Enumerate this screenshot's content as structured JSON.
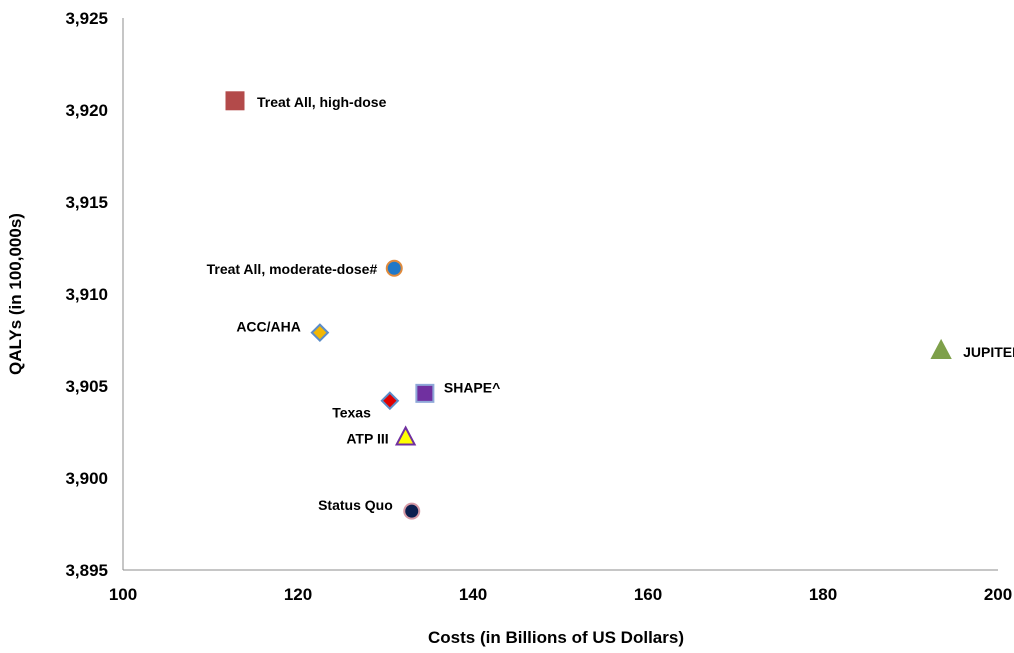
{
  "chart_data": {
    "type": "scatter",
    "xlabel": "Costs (in Billions of US Dollars)",
    "ylabel": "QALYs (in 100,000s)",
    "xlim": [
      100,
      200
    ],
    "ylim": [
      3895,
      3925
    ],
    "x_ticks": [
      "100",
      "120",
      "140",
      "160",
      "180",
      "200"
    ],
    "y_ticks": [
      "3,895",
      "3,900",
      "3,905",
      "3,910",
      "3,915",
      "3,920",
      "3,925"
    ],
    "grid": false,
    "points": [
      {
        "label": "Treat All, high-dose",
        "x": 112.8,
        "y": 3920.5,
        "marker": "square",
        "fill": "#b34a4a",
        "stroke": "#b34a4a",
        "label_pos": "right"
      },
      {
        "label": "Treat All, moderate-dose#",
        "x": 131.0,
        "y": 3911.4,
        "marker": "circle",
        "fill": "#1f78c8",
        "stroke": "#e08a3c",
        "label_pos": "left"
      },
      {
        "label": "ACC/AHA",
        "x": 122.5,
        "y": 3907.9,
        "marker": "diamond",
        "fill": "#f2b705",
        "stroke": "#5b8cc8",
        "label_pos": "upper-left"
      },
      {
        "label": "JUPITER",
        "x": 193.5,
        "y": 3906.9,
        "marker": "triangle",
        "fill": "#7ea04a",
        "stroke": "#7ea04a",
        "label_pos": "right"
      },
      {
        "label": "SHAPE^",
        "x": 134.5,
        "y": 3904.6,
        "marker": "square",
        "fill": "#7030a0",
        "stroke": "#8fa8d8",
        "label_pos": "upper-right"
      },
      {
        "label": "Texas",
        "x": 130.5,
        "y": 3904.2,
        "marker": "diamond",
        "fill": "#e00000",
        "stroke": "#5b8cc8",
        "label_pos": "lower-left"
      },
      {
        "label": "ATP III",
        "x": 132.3,
        "y": 3902.2,
        "marker": "triangle",
        "fill": "#ffff00",
        "stroke": "#7030a0",
        "label_pos": "left"
      },
      {
        "label": "Status Quo",
        "x": 133.0,
        "y": 3898.2,
        "marker": "circle",
        "fill": "#0c1f4f",
        "stroke": "#d69aa6",
        "label_pos": "upper-left"
      }
    ]
  }
}
